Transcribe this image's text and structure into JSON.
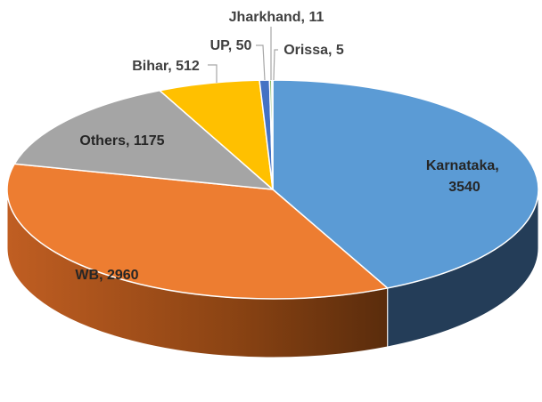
{
  "chart_data": {
    "type": "pie",
    "style": "3d",
    "title": "",
    "categories": [
      "Karnataka",
      "WB",
      "Others",
      "Bihar",
      "UP",
      "Jharkhand",
      "Orissa"
    ],
    "values": [
      3540,
      2960,
      1175,
      512,
      50,
      11,
      5
    ],
    "labels": [
      "Karnataka, 3540",
      "WB, 2960",
      "Others, 1175",
      "Bihar, 512",
      "UP, 50",
      "Jharkhand, 11",
      "Orissa, 5"
    ],
    "label_lines": [
      "Karnataka,",
      "3540"
    ],
    "colors": [
      "#5B9BD5",
      "#ED7D31",
      "#A5A5A5",
      "#FFC000",
      "#4472C4",
      "#70AD47",
      "#264478"
    ],
    "legend": "none"
  }
}
